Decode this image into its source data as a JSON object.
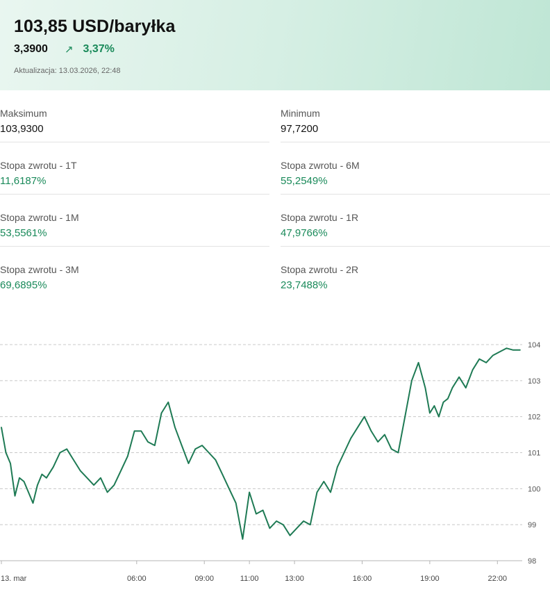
{
  "header": {
    "title": "103,85 USD/baryłka",
    "change_abs": "3,3900",
    "arrow_icon": "arrow-up-right-icon",
    "change_pct": "3,37%",
    "updated": "Aktualizacja: 13.03.2026, 22:48"
  },
  "colors": {
    "accent_green": "#1a8a5a",
    "line": "#1e7a54"
  },
  "stats": {
    "max": {
      "label": "Maksimum",
      "value": "103,9300"
    },
    "min": {
      "label": "Minimum",
      "value": "97,7200"
    },
    "r1t": {
      "label": "Stopa zwrotu - 1T",
      "value": "11,6187%"
    },
    "r6m": {
      "label": "Stopa zwrotu - 6M",
      "value": "55,2549%"
    },
    "r1m": {
      "label": "Stopa zwrotu - 1M",
      "value": "53,5561%"
    },
    "r1r": {
      "label": "Stopa zwrotu - 1R",
      "value": "47,9766%"
    },
    "r3m": {
      "label": "Stopa zwrotu - 3M",
      "value": "69,6895%"
    },
    "r2r": {
      "label": "Stopa zwrotu - 2R",
      "value": "23,7488%"
    }
  },
  "chart_data": {
    "type": "line",
    "x_ticks": [
      "13. mar",
      "06:00",
      "09:00",
      "11:00",
      "13:00",
      "16:00",
      "19:00",
      "22:00"
    ],
    "x_tick_hours": [
      0,
      6,
      9,
      11,
      13,
      16,
      19,
      22
    ],
    "y_ticks": [
      "104",
      "103",
      "102",
      "101",
      "100",
      "99",
      "98"
    ],
    "ylim": [
      98,
      104
    ],
    "xlim_hours": [
      0,
      23.1
    ],
    "grid": "horizontal-dashed",
    "series": [
      {
        "x": [
          0,
          0.2,
          0.4,
          0.6,
          0.8,
          1.0,
          1.2,
          1.4,
          1.6,
          1.8,
          2.0,
          2.3,
          2.6,
          2.9,
          3.2,
          3.5,
          3.8,
          4.1,
          4.4,
          4.7,
          5.0,
          5.3,
          5.6,
          5.9,
          6.2,
          6.5,
          6.8,
          7.1,
          7.4,
          7.7,
          8.0,
          8.3,
          8.6,
          8.9,
          9.2,
          9.5,
          9.8,
          10.1,
          10.4,
          10.7,
          11.0,
          11.3,
          11.6,
          11.9,
          12.2,
          12.5,
          12.8,
          13.1,
          13.4,
          13.7,
          14.0,
          14.3,
          14.6,
          14.9,
          15.2,
          15.5,
          15.8,
          16.1,
          16.4,
          16.7,
          17.0,
          17.3,
          17.6,
          17.9,
          18.2,
          18.5,
          18.8,
          19.0,
          19.2,
          19.4,
          19.6,
          19.8,
          20.0,
          20.3,
          20.6,
          20.9,
          21.2,
          21.5,
          21.8,
          22.1,
          22.4,
          22.7,
          23.0
        ],
        "y": [
          101.7,
          101.0,
          100.7,
          99.8,
          100.3,
          100.2,
          99.9,
          99.6,
          100.1,
          100.4,
          100.3,
          100.6,
          101.0,
          101.1,
          100.8,
          100.5,
          100.3,
          100.1,
          100.3,
          99.9,
          100.1,
          100.5,
          100.9,
          101.6,
          101.6,
          101.3,
          101.2,
          102.1,
          102.4,
          101.7,
          101.2,
          100.7,
          101.1,
          101.2,
          101.0,
          100.8,
          100.4,
          100.0,
          99.6,
          98.6,
          99.9,
          99.3,
          99.4,
          98.9,
          99.1,
          99.0,
          98.7,
          98.9,
          99.1,
          99.0,
          99.9,
          100.2,
          99.9,
          100.6,
          101.0,
          101.4,
          101.7,
          102.0,
          101.6,
          101.3,
          101.5,
          101.1,
          101.0,
          102.0,
          103.0,
          103.5,
          102.8,
          102.1,
          102.3,
          102.0,
          102.4,
          102.5,
          102.8,
          103.1,
          102.8,
          103.3,
          103.6,
          103.5,
          103.7,
          103.8,
          103.9,
          103.85,
          103.85
        ]
      }
    ]
  }
}
